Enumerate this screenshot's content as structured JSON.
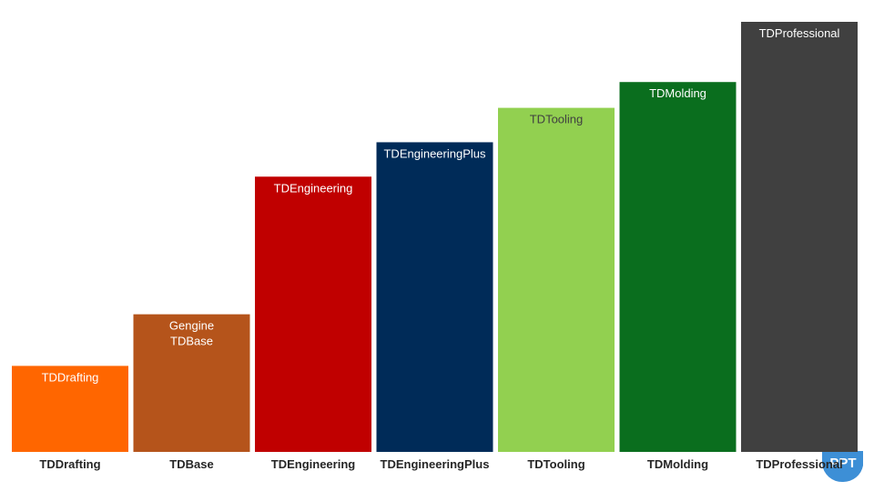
{
  "chart_data": {
    "type": "bar",
    "title": "",
    "xlabel": "",
    "ylabel": "",
    "categories": [
      "TDDrafting",
      "TDBase",
      "TDEngineering",
      "TDEngineeringPlus",
      "TDTooling",
      "TDMolding",
      "TDProfessional"
    ],
    "values": [
      20,
      32,
      64,
      72,
      80,
      86,
      100
    ],
    "ylim": [
      0,
      100
    ],
    "grid": false,
    "legend": "none",
    "bar_labels": [
      [
        "TDDrafting"
      ],
      [
        "Gengine",
        "TDBase"
      ],
      [
        "TDEngineering"
      ],
      [
        "TDEngineeringPlus"
      ],
      [
        "TDTooling"
      ],
      [
        "TDMolding"
      ],
      [
        "TDProfessional"
      ]
    ],
    "colors": [
      "#ff6600",
      "#b5541b",
      "#c00000",
      "#002b58",
      "#92d050",
      "#0a6e1e",
      "#404040"
    ],
    "label_colors": [
      "#ffffff",
      "#ffffff",
      "#ffffff",
      "#ffffff",
      "#404040",
      "#ffffff",
      "#ffffff"
    ]
  },
  "logo": {
    "text": "PPT",
    "color": "#3d8fd6"
  }
}
